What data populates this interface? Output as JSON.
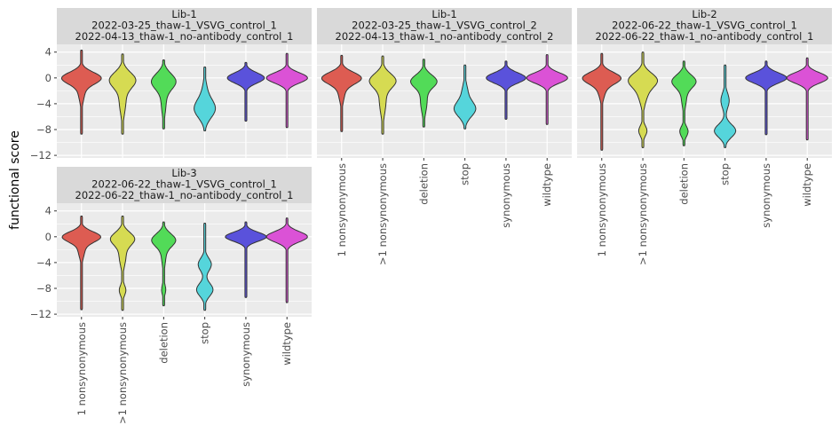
{
  "chart_data": {
    "type": "violin",
    "ylabel": "functional score",
    "xlabel": "",
    "ylim": [
      -12.4,
      5.2
    ],
    "yticks": [
      4,
      0,
      -4,
      -8,
      -12
    ],
    "ytick_labels": [
      "4",
      "0",
      "−4",
      "−8",
      "−12"
    ],
    "grid": true,
    "legend": "none",
    "categories": [
      "1 nonsynonymous",
      ">1 nonsynonymous",
      "deletion",
      "stop",
      "synonymous",
      "wildtype"
    ],
    "colors": [
      "#dd5c52",
      "#d6db52",
      "#52db58",
      "#55d5db",
      "#5a52db",
      "#db52d6"
    ],
    "facets": [
      {
        "strip": [
          "Lib-1",
          "2022-03-25_thaw-1_VSVG_control_1",
          "2022-04-13_thaw-1_no-antibody_control_1"
        ],
        "violins": [
          {
            "min": -8.7,
            "max": 4.3,
            "modes": [
              [
                0,
                0.9,
                0.45
              ],
              [
                -2,
                1.5,
                0.08
              ]
            ]
          },
          {
            "min": -8.7,
            "max": 3.7,
            "modes": [
              [
                -0.3,
                1.2,
                0.3
              ],
              [
                -3.5,
                2,
                0.08
              ]
            ]
          },
          {
            "min": -7.9,
            "max": 2.8,
            "modes": [
              [
                -0.5,
                1.2,
                0.28
              ],
              [
                -3.5,
                2,
                0.06
              ]
            ]
          },
          {
            "min": -8.2,
            "max": 1.7,
            "modes": [
              [
                -4.8,
                1.4,
                0.25
              ],
              [
                -2,
                1.5,
                0.05
              ]
            ]
          },
          {
            "min": -6.7,
            "max": 2.4,
            "modes": [
              [
                0,
                0.8,
                0.45
              ]
            ]
          },
          {
            "min": -7.7,
            "max": 3.8,
            "modes": [
              [
                0,
                0.8,
                0.5
              ]
            ]
          }
        ]
      },
      {
        "strip": [
          "Lib-1",
          "2022-03-25_thaw-1_VSVG_control_2",
          "2022-04-13_thaw-1_no-antibody_control_2"
        ],
        "violins": [
          {
            "min": -8.3,
            "max": 3.5,
            "modes": [
              [
                0,
                0.9,
                0.45
              ],
              [
                -2,
                1.5,
                0.08
              ]
            ]
          },
          {
            "min": -8.7,
            "max": 3.4,
            "modes": [
              [
                -0.4,
                1.1,
                0.3
              ],
              [
                -3.5,
                2,
                0.08
              ]
            ]
          },
          {
            "min": -7.6,
            "max": 2.9,
            "modes": [
              [
                -0.5,
                1,
                0.3
              ],
              [
                -3.5,
                1.8,
                0.08
              ]
            ]
          },
          {
            "min": -7.9,
            "max": 2.0,
            "modes": [
              [
                -4.8,
                1.2,
                0.26
              ],
              [
                -2,
                1.2,
                0.06
              ]
            ]
          },
          {
            "min": -6.4,
            "max": 2.6,
            "modes": [
              [
                0,
                0.8,
                0.48
              ]
            ]
          },
          {
            "min": -7.2,
            "max": 3.6,
            "modes": [
              [
                0,
                0.8,
                0.5
              ]
            ]
          }
        ]
      },
      {
        "strip": [
          "Lib-2",
          "2022-06-22_thaw-1_VSVG_control_1",
          "2022-06-22_thaw-1_no-antibody_control_1"
        ],
        "violins": [
          {
            "min": -11.2,
            "max": 3.8,
            "modes": [
              [
                0,
                0.9,
                0.45
              ],
              [
                -2,
                1.2,
                0.08
              ],
              [
                -8,
                1,
                0.02
              ]
            ]
          },
          {
            "min": -10.8,
            "max": 4.0,
            "modes": [
              [
                -0.3,
                1.1,
                0.32
              ],
              [
                -2.5,
                1.5,
                0.1
              ],
              [
                -8.2,
                0.8,
                0.1
              ]
            ]
          },
          {
            "min": -10.5,
            "max": 2.6,
            "modes": [
              [
                -0.5,
                1,
                0.28
              ],
              [
                -3,
                1.5,
                0.06
              ],
              [
                -8.3,
                0.8,
                0.1
              ]
            ]
          },
          {
            "min": -10.8,
            "max": 2.0,
            "modes": [
              [
                -8.2,
                1,
                0.26
              ],
              [
                -3.5,
                1.2,
                0.1
              ]
            ]
          },
          {
            "min": -8.8,
            "max": 2.6,
            "modes": [
              [
                0,
                0.8,
                0.5
              ]
            ]
          },
          {
            "min": -9.6,
            "max": 3.1,
            "modes": [
              [
                0,
                0.8,
                0.5
              ]
            ]
          }
        ]
      },
      {
        "strip": [
          "Lib-3",
          "2022-06-22_thaw-1_VSVG_control_1",
          "2022-06-22_thaw-1_no-antibody_control_1"
        ],
        "violins": [
          {
            "min": -11.3,
            "max": 3.2,
            "modes": [
              [
                0,
                0.8,
                0.45
              ],
              [
                -2,
                1.2,
                0.08
              ]
            ]
          },
          {
            "min": -11.4,
            "max": 3.2,
            "modes": [
              [
                -0.3,
                1,
                0.28
              ],
              [
                -3,
                1.5,
                0.08
              ],
              [
                -8.3,
                0.8,
                0.08
              ]
            ]
          },
          {
            "min": -10.7,
            "max": 2.3,
            "modes": [
              [
                -0.5,
                1,
                0.28
              ],
              [
                -3,
                1.5,
                0.05
              ],
              [
                -8.2,
                0.8,
                0.05
              ]
            ]
          },
          {
            "min": -11.4,
            "max": 2.1,
            "modes": [
              [
                -4.3,
                1,
                0.16
              ],
              [
                -8.2,
                1,
                0.2
              ]
            ]
          },
          {
            "min": -9.4,
            "max": 2.3,
            "modes": [
              [
                0,
                0.7,
                0.5
              ]
            ]
          },
          {
            "min": -10.2,
            "max": 2.9,
            "modes": [
              [
                0,
                0.8,
                0.5
              ]
            ]
          }
        ]
      }
    ]
  }
}
